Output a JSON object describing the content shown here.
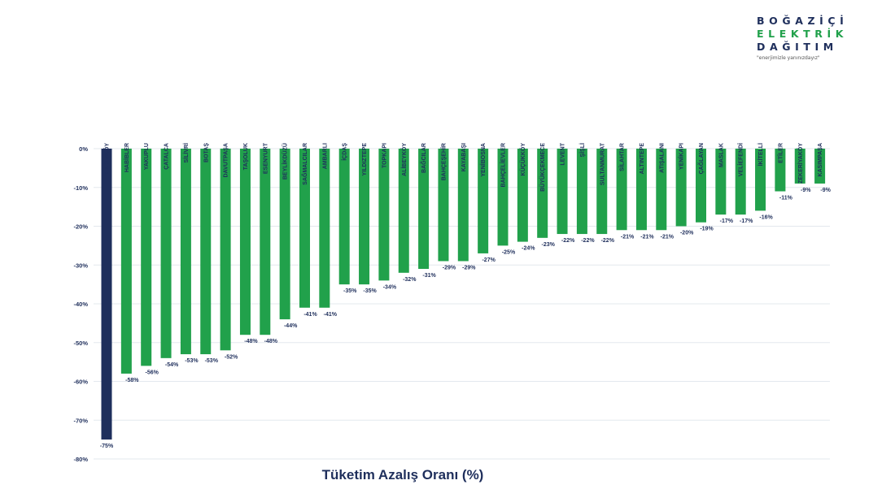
{
  "logo": {
    "line1": "BOĞAZİÇİ",
    "line2": "ELEKTRİK",
    "line3": "DAĞITIM",
    "tagline": "\"enerjimizle yanınızdayız\""
  },
  "chart_data": {
    "type": "bar",
    "xlabel": "Tüketim Azalış Oranı (%)",
    "ylabel": "",
    "ylim": [
      -80,
      0
    ],
    "yticks": [
      0,
      -10,
      -20,
      -30,
      -40,
      -50,
      -60,
      -70,
      -80
    ],
    "ytick_labels": [
      "0%",
      "-10%",
      "-20%",
      "-30%",
      "-40%",
      "-50%",
      "-60%",
      "-70%",
      "-80%"
    ],
    "grid": true,
    "categories": [
      "HADIMKÖY",
      "HABİBLER",
      "YAKUPLU",
      "ÇATALCA",
      "SİLİVRİ",
      "BOTAŞ",
      "DAVUTPAŞA",
      "TAŞOLUK",
      "ESENYURT",
      "BEYLİKDÜZÜ",
      "SAĞMALCILAR",
      "AMBARLI",
      "İÇDAŞ",
      "YILDIZTEPE",
      "TOPKAPI",
      "ALİBEYKÖY",
      "BAĞCILAR",
      "BAHÇEŞEHİR",
      "KAYABAŞI",
      "YENİBOSNA",
      "BAHÇELİEVLER",
      "KÜÇÜKKÖY",
      "BÜYÜKÇEKMECE",
      "LEVENT",
      "ŞİŞLİ",
      "SULTANMURAT",
      "SİLAHTAR",
      "ALTINTEPE",
      "ATIŞALANI",
      "YENİKAPI",
      "ÇAĞLAYAN",
      "MASLAK",
      "VELİEFENDİ",
      "İKİTELLİ",
      "ETİLER",
      "ZEKERİYAKÖY",
      "KASIMPAŞA"
    ],
    "values": [
      -75,
      -58,
      -56,
      -54,
      -53,
      -53,
      -52,
      -48,
      -48,
      -44,
      -41,
      -41,
      -35,
      -35,
      -34,
      -32,
      -31,
      -29,
      -29,
      -27,
      -25,
      -24,
      -23,
      -22,
      -22,
      -22,
      -21,
      -21,
      -21,
      -20,
      -19,
      -17,
      -17,
      -16,
      -11,
      -9,
      -9
    ],
    "labels": [
      "-75%",
      "-58%",
      "-56%",
      "-54%",
      "-53%",
      "-53%",
      "-52%",
      "-48%",
      "-48%",
      "-44%",
      "-41%",
      "-41%",
      "-35%",
      "-35%",
      "-34%",
      "-32%",
      "-31%",
      "-29%",
      "-29%",
      "-27%",
      "-25%",
      "-24%",
      "-23%",
      "-22%",
      "-22%",
      "-22%",
      "-21%",
      "-21%",
      "-21%",
      "-20%",
      "-19%",
      "-17%",
      "-17%",
      "-16%",
      "-11%",
      "-9%",
      "-9%"
    ],
    "colors": {
      "highlight": "#1f2f5c",
      "bar": "#21a14b",
      "text": "#1f2f5c",
      "grid": "#e3e8ee"
    }
  }
}
